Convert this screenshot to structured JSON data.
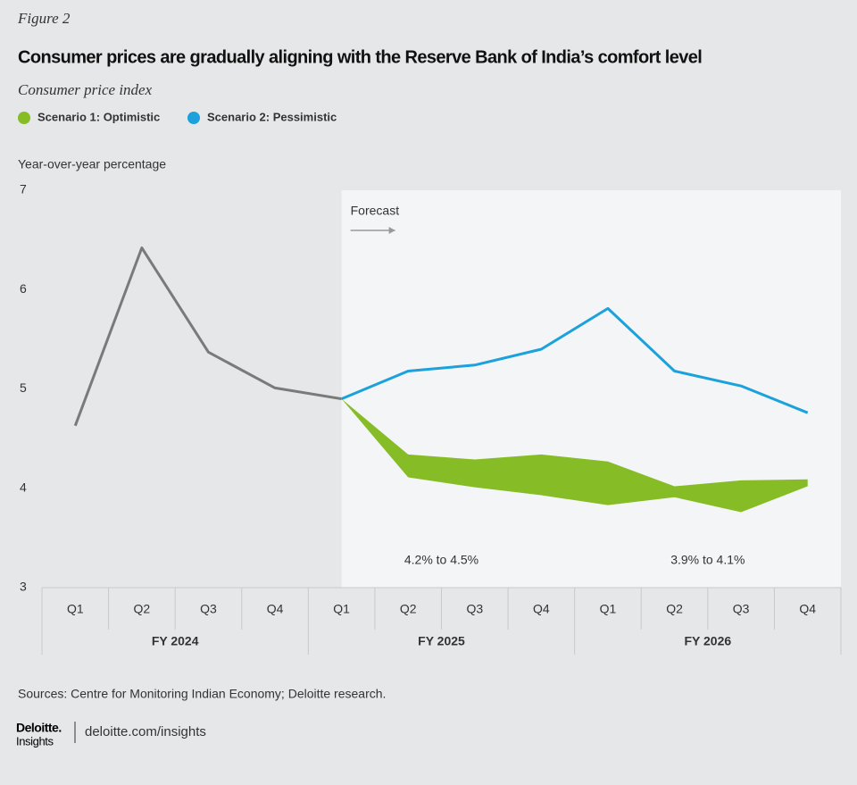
{
  "chart_data": {
    "type": "line",
    "figure_label": "Figure 2",
    "title": "Consumer prices are gradually aligning with the Reserve Bank of India’s comfort level",
    "subtitle": "Consumer price index",
    "y_label": "Year-over-year percentage",
    "categories": [
      "Q1",
      "Q2",
      "Q3",
      "Q4",
      "Q1",
      "Q2",
      "Q3",
      "Q4",
      "Q1",
      "Q2",
      "Q3",
      "Q4"
    ],
    "groups": [
      {
        "label": "FY 2024",
        "count": 4
      },
      {
        "label": "FY 2025",
        "count": 4
      },
      {
        "label": "FY 2026",
        "count": 4
      }
    ],
    "ylim": [
      3,
      7
    ],
    "yticks": [
      3,
      4,
      5,
      6,
      7
    ],
    "grid": false,
    "forecast": {
      "label": "Forecast",
      "from_category": 4,
      "color": "#f4f5f6"
    },
    "historical": {
      "color": "#7a7a7a",
      "values": [
        4.63,
        6.42,
        5.37,
        5.01,
        4.9,
        null,
        null,
        null,
        null,
        null,
        null,
        null
      ]
    },
    "series": [
      {
        "name": "Scenario 1: Optimistic",
        "color": "#86bc25",
        "kind": "band",
        "upper": [
          null,
          null,
          null,
          null,
          4.9,
          4.34,
          4.29,
          4.34,
          4.27,
          4.02,
          4.08,
          4.09
        ],
        "lower": [
          null,
          null,
          null,
          null,
          4.9,
          4.11,
          4.01,
          3.93,
          3.83,
          3.91,
          3.76,
          4.02
        ]
      },
      {
        "name": "Scenario 2: Pessimistic",
        "color": "#1ba1dc",
        "kind": "line",
        "values": [
          null,
          null,
          null,
          null,
          4.9,
          5.18,
          5.24,
          5.4,
          5.81,
          5.18,
          5.03,
          4.76
        ]
      }
    ],
    "annotations": [
      "4.2% to 4.5%",
      "3.9% to 4.1%"
    ],
    "source": "Sources:  Centre for Monitoring Indian Economy; Deloitte research.",
    "brand": "Deloitte.",
    "brand_sub": "Insights",
    "url": "deloitte.com/insights"
  }
}
